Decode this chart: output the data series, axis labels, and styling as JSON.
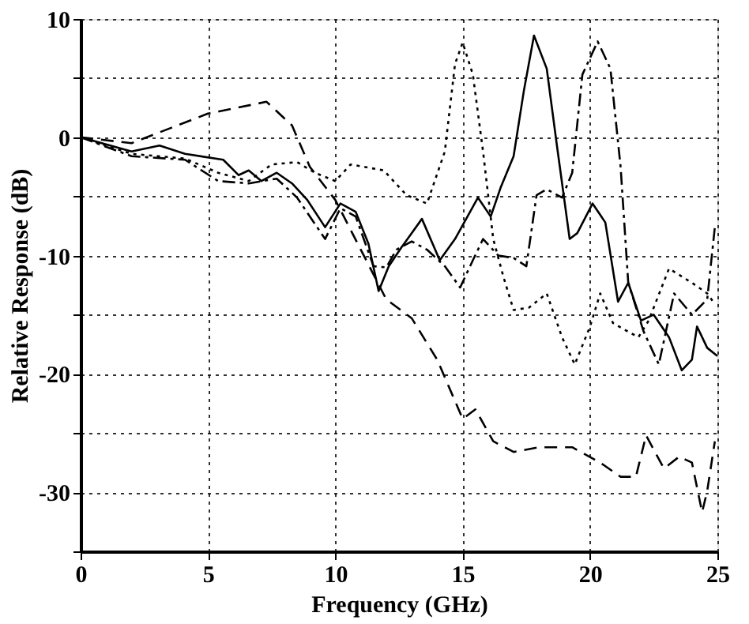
{
  "chart_data": {
    "type": "line",
    "xlabel": "Frequency (GHz)",
    "ylabel": "Relative Response (dB)",
    "xlim": [
      0,
      25
    ],
    "xticks": [
      0,
      5,
      10,
      15,
      20,
      25
    ],
    "ylim": [
      -35,
      10
    ],
    "yticks": [
      {
        "value": -35,
        "label": null
      },
      -30,
      {
        "value": -25,
        "label": null
      },
      -20,
      {
        "value": -15,
        "label": null
      },
      -10,
      {
        "value": -5,
        "label": null
      },
      0,
      {
        "value": 5,
        "label": null
      },
      10
    ],
    "grid": true,
    "marker": "none",
    "series": [
      {
        "color": "#000000",
        "line_style": "solid",
        "x": [
          0,
          2,
          3.1,
          4.1,
          5.6,
          6.2,
          6.6,
          7.1,
          7.7,
          8.3,
          8.9,
          9.6,
          10.2,
          10.8,
          11.3,
          11.7,
          12.1,
          12.6,
          13.4,
          14.1,
          14.7,
          15.6,
          16.1,
          16.5,
          17,
          17.4,
          17.8,
          18.3,
          18.7,
          19.2,
          19.5,
          20.1,
          20.6,
          21.1,
          21.5,
          22,
          22.5,
          23.1,
          23.6,
          24,
          24.2,
          24.6,
          25
        ],
        "values": [
          0,
          -1.2,
          -0.7,
          -1.4,
          -1.9,
          -3.2,
          -2.8,
          -3.7,
          -3,
          -3.9,
          -5.3,
          -7.6,
          -5.6,
          -6.3,
          -9,
          -13,
          -10.9,
          -9.3,
          -6.9,
          -10.4,
          -8.6,
          -5.1,
          -6.7,
          -4.2,
          -1.6,
          3.9,
          8.6,
          5.8,
          -0.7,
          -8.6,
          -8.1,
          -5.6,
          -7.2,
          -13.9,
          -12.3,
          -15.5,
          -15,
          -16.9,
          -19.7,
          -18.8,
          -16,
          -17.8,
          -18.5
        ]
      },
      {
        "color": "#000000",
        "line_style": "dashed",
        "x": [
          0,
          2,
          5,
          7.3,
          8.3,
          9,
          10,
          11,
          12,
          13,
          14,
          15,
          15.5,
          16.2,
          17,
          18,
          19.3,
          20.4,
          21.2,
          21.8,
          22.2,
          22.9,
          23.5,
          24,
          24.4,
          24.6,
          24.9
        ],
        "values": [
          0,
          -0.5,
          2,
          3,
          1,
          -2.5,
          -5.3,
          -9.5,
          -13.7,
          -15.3,
          -18.8,
          -23.8,
          -23,
          -25.7,
          -26.6,
          -26.2,
          -26.2,
          -27.5,
          -28.7,
          -28.7,
          -25.2,
          -28,
          -27,
          -27.5,
          -31.7,
          -29.9,
          -25.7
        ]
      },
      {
        "color": "#000000",
        "line_style": "dotted",
        "x": [
          0,
          2,
          4.1,
          5.4,
          6.6,
          7.5,
          8.5,
          9.2,
          10,
          10.6,
          11.9,
          12.8,
          13.6,
          14.3,
          14.7,
          15,
          15.4,
          15.8,
          16.2,
          16.6,
          17,
          17.6,
          18.3,
          18.9,
          19.4,
          20,
          20.4,
          20.9,
          21.3,
          21.9,
          22.3,
          23.1,
          24,
          24.6,
          24.9
        ],
        "values": [
          0,
          -1.4,
          -1.8,
          -3,
          -3.7,
          -2.3,
          -2.1,
          -3,
          -3.7,
          -2.3,
          -2.8,
          -4.9,
          -5.6,
          -1.2,
          6.2,
          8,
          5.3,
          -1.2,
          -8.6,
          -11.8,
          -14.6,
          -14.4,
          -13.2,
          -16.9,
          -19.2,
          -16,
          -13.2,
          -15.7,
          -16.2,
          -16.9,
          -15.5,
          -11.1,
          -12.3,
          -13.2,
          -14.1
        ]
      },
      {
        "color": "#000000",
        "line_style": "dashdot",
        "x": [
          0,
          2,
          4.1,
          5.4,
          6.6,
          7.7,
          8.5,
          9.6,
          10.2,
          10.8,
          11.5,
          12,
          12.4,
          13,
          13.6,
          14.3,
          14.9,
          15.4,
          15.8,
          16.4,
          17,
          17.5,
          17.9,
          18.3,
          18.9,
          19.3,
          19.7,
          20.3,
          20.8,
          21.2,
          21.5,
          22.1,
          22.7,
          23.3,
          24,
          24.6,
          24.9
        ],
        "values": [
          0,
          -1.6,
          -1.9,
          -3.7,
          -3.9,
          -3.5,
          -5.1,
          -8.6,
          -6,
          -6.7,
          -10.9,
          -11,
          -9.5,
          -8.8,
          -9.5,
          -10.9,
          -12.7,
          -10.4,
          -8.6,
          -10,
          -10.2,
          -10.9,
          -4.9,
          -4.4,
          -5.1,
          -3,
          5.3,
          8.1,
          5.8,
          -2.5,
          -12.3,
          -16.4,
          -19.2,
          -13.2,
          -15,
          -13.7,
          -7.6
        ]
      }
    ]
  }
}
